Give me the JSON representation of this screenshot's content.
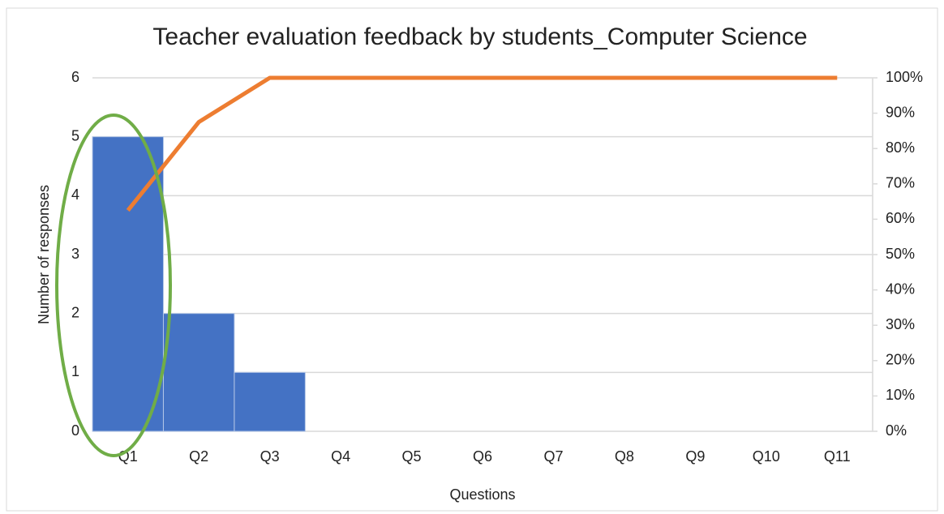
{
  "chart_data": {
    "type": "pareto",
    "title": "Teacher evaluation feedback by students_Computer Science",
    "x_label": "Questions",
    "y_label": "Number of responses",
    "categories": [
      "Q1",
      "Q2",
      "Q3",
      "Q4",
      "Q5",
      "Q6",
      "Q7",
      "Q8",
      "Q9",
      "Q10",
      "Q11"
    ],
    "series": [
      {
        "color": "#4472c4",
        "values": [
          5,
          2,
          1,
          0,
          0,
          0,
          0,
          0,
          0,
          0,
          0
        ]
      },
      {
        "color": "#ed7d31",
        "axis": "y2",
        "values": [
          62.5,
          87.5,
          100,
          100,
          100,
          100,
          100,
          100,
          100,
          100,
          100
        ]
      }
    ],
    "ylim": [
      0,
      6
    ],
    "yticks": [
      0,
      1,
      2,
      3,
      4,
      5,
      6
    ],
    "y2lim": [
      0,
      100
    ],
    "y2ticks": [
      {
        "value": 0,
        "label": "0%"
      },
      {
        "value": 10,
        "label": "10%"
      },
      {
        "value": 20,
        "label": "20%"
      },
      {
        "value": 30,
        "label": "30%"
      },
      {
        "value": 40,
        "label": "40%"
      },
      {
        "value": 50,
        "label": "50%"
      },
      {
        "value": 60,
        "label": "60%"
      },
      {
        "value": 70,
        "label": "70%"
      },
      {
        "value": 80,
        "label": "80%"
      },
      {
        "value": 90,
        "label": "90%"
      },
      {
        "value": 100,
        "label": "100%"
      }
    ],
    "grid": true
  }
}
